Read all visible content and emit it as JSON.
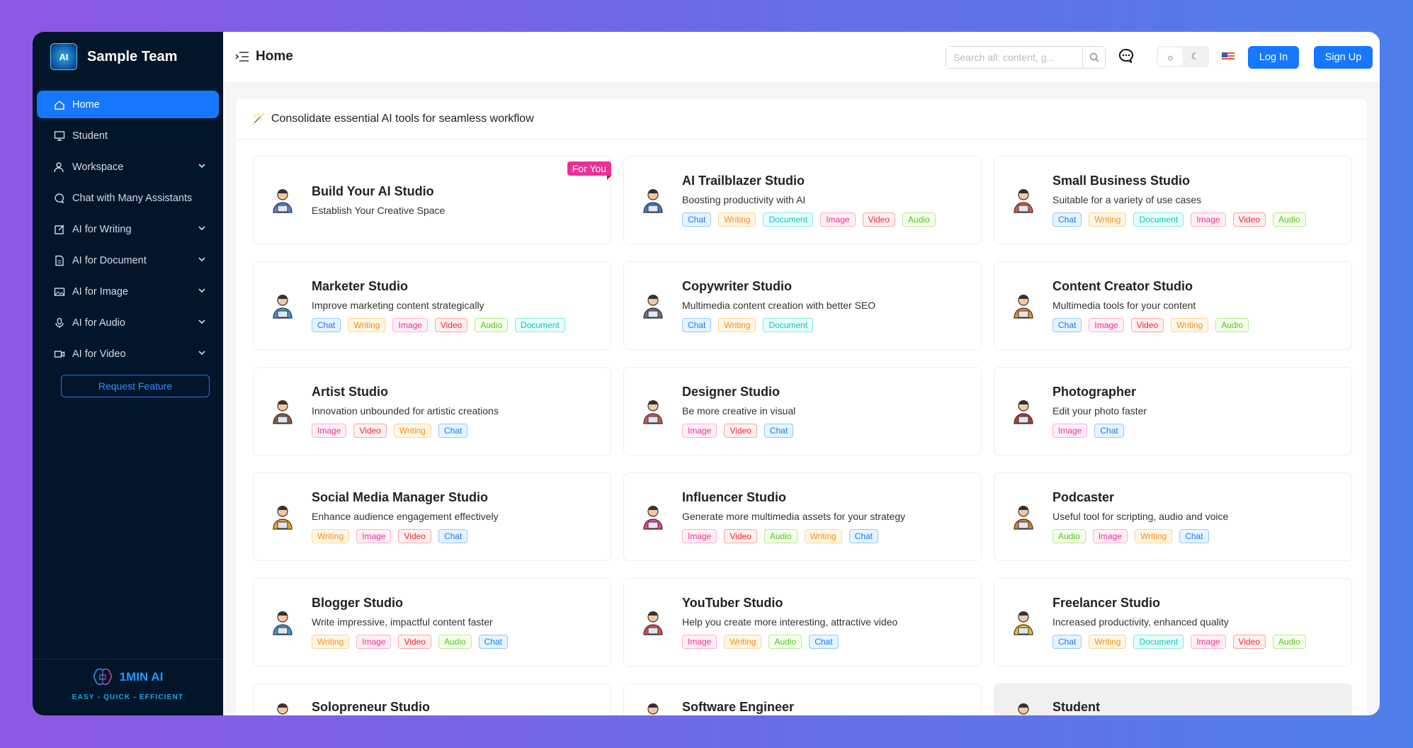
{
  "sidebar": {
    "brand": "Sample Team",
    "logo_text": "AI",
    "items": [
      {
        "label": "Home",
        "icon": "home-icon",
        "active": true
      },
      {
        "label": "Student",
        "icon": "monitor-icon"
      },
      {
        "label": "Workspace",
        "icon": "users-icon",
        "expandable": true
      },
      {
        "label": "Chat with Many Assistants",
        "icon": "chat-icon"
      },
      {
        "label": "AI for Writing",
        "icon": "edit-icon",
        "expandable": true
      },
      {
        "label": "AI for Document",
        "icon": "document-icon",
        "expandable": true
      },
      {
        "label": "AI for Image",
        "icon": "image-icon",
        "expandable": true
      },
      {
        "label": "AI for Audio",
        "icon": "microphone-icon",
        "expandable": true
      },
      {
        "label": "AI for Video",
        "icon": "video-icon",
        "expandable": true
      }
    ],
    "request_feature": "Request Feature",
    "footer": {
      "name": "1MIN AI",
      "tagline": "EASY - QUICK - EFFICIENT"
    }
  },
  "header": {
    "title": "Home",
    "search_placeholder": "Search all: content, g...",
    "login": "Log In",
    "signup": "Sign Up",
    "theme": "light"
  },
  "panel": {
    "heading": "Consolidate essential AI tools for seamless workflow"
  },
  "tag_colors": {
    "Chat": [
      "#1677ff",
      "#e6f4ff",
      "#91caff"
    ],
    "Writing": [
      "#fa8c16",
      "#fff7e6",
      "#ffd591"
    ],
    "Document": [
      "#13c2c2",
      "#e6fffb",
      "#87e8de"
    ],
    "Image": [
      "#eb2f96",
      "#fff0f6",
      "#ffadd2"
    ],
    "Video": [
      "#f5222d",
      "#fff1f0",
      "#ffa39e"
    ],
    "Audio": [
      "#52c41a",
      "#f6ffed",
      "#b7eb8f"
    ]
  },
  "cards": [
    {
      "title": "Build Your AI Studio",
      "desc": "Establish Your Creative Space",
      "tags": [],
      "badge": "For You",
      "color": "#5b7fe0"
    },
    {
      "title": "AI Trailblazer Studio",
      "desc": "Boosting productivity with AI",
      "tags": [
        "Chat",
        "Writing",
        "Document",
        "Image",
        "Video",
        "Audio"
      ],
      "color": "#3a7bd5"
    },
    {
      "title": "Small Business Studio",
      "desc": "Suitable for a variety of use cases",
      "tags": [
        "Chat",
        "Writing",
        "Document",
        "Image",
        "Video",
        "Audio"
      ],
      "color": "#e5534b"
    },
    {
      "title": "Marketer Studio",
      "desc": "Improve marketing content strategically",
      "tags": [
        "Chat",
        "Writing",
        "Image",
        "Video",
        "Audio",
        "Document"
      ],
      "color": "#4a90d9"
    },
    {
      "title": "Copywriter Studio",
      "desc": "Multimedia content creation with better SEO",
      "tags": [
        "Chat",
        "Writing",
        "Document"
      ],
      "color": "#6b6b8a"
    },
    {
      "title": "Content Creator Studio",
      "desc": "Multimedia tools for your content",
      "tags": [
        "Chat",
        "Image",
        "Video",
        "Writing",
        "Audio"
      ],
      "color": "#f08a24"
    },
    {
      "title": "Artist Studio",
      "desc": "Innovation unbounded for artistic creations",
      "tags": [
        "Image",
        "Video",
        "Writing",
        "Chat"
      ],
      "color": "#8b5a3c"
    },
    {
      "title": "Designer Studio",
      "desc": "Be more creative in visual",
      "tags": [
        "Image",
        "Video",
        "Chat"
      ],
      "color": "#d9534f"
    },
    {
      "title": "Photographer",
      "desc": "Edit your photo faster",
      "tags": [
        "Image",
        "Chat"
      ],
      "color": "#c0392b"
    },
    {
      "title": "Social Media Manager Studio",
      "desc": "Enhance audience engagement effectively",
      "tags": [
        "Writing",
        "Image",
        "Video",
        "Chat"
      ],
      "color": "#f5a623"
    },
    {
      "title": "Influencer Studio",
      "desc": "Generate more multimedia assets for your strategy",
      "tags": [
        "Image",
        "Video",
        "Audio",
        "Writing",
        "Chat"
      ],
      "color": "#e84393"
    },
    {
      "title": "Podcaster",
      "desc": "Useful tool for scripting, audio and voice",
      "tags": [
        "Audio",
        "Image",
        "Writing",
        "Chat"
      ],
      "color": "#e67e22"
    },
    {
      "title": "Blogger Studio",
      "desc": "Write impressive, impactful content faster",
      "tags": [
        "Writing",
        "Image",
        "Video",
        "Audio",
        "Chat"
      ],
      "color": "#3498db"
    },
    {
      "title": "YouTuber Studio",
      "desc": "Help you create more interesting, attractive video",
      "tags": [
        "Image",
        "Writing",
        "Audio",
        "Chat"
      ],
      "color": "#e74c3c"
    },
    {
      "title": "Freelancer Studio",
      "desc": "Increased productivity, enhanced quality",
      "tags": [
        "Chat",
        "Writing",
        "Document",
        "Image",
        "Video",
        "Audio"
      ],
      "color": "#f1c40f"
    },
    {
      "title": "Solopreneur Studio",
      "desc": "",
      "tags": [],
      "color": "#5dade2"
    },
    {
      "title": "Software Engineer",
      "desc": "",
      "tags": [],
      "color": "#8e5b3a"
    },
    {
      "title": "Student",
      "desc": "",
      "tags": [],
      "color": "#555",
      "hover": true
    }
  ]
}
